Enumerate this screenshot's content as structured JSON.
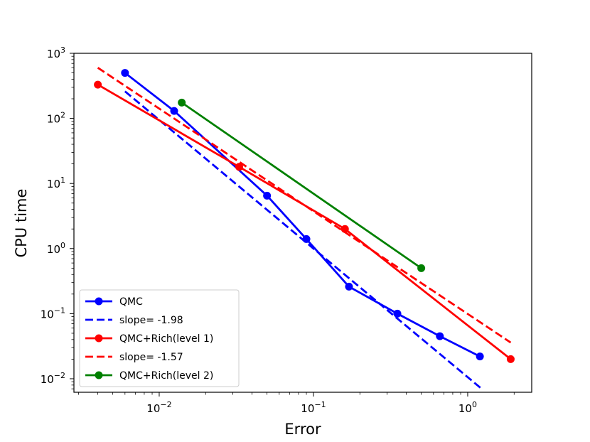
{
  "chart_data": {
    "type": "line",
    "xlabel": "Error",
    "ylabel": "CPU time",
    "xscale": "log",
    "yscale": "log",
    "xlim": [
      0.0028,
      2.6
    ],
    "ylim": [
      0.0062,
      1000
    ],
    "grid": false,
    "legend_position": "lower-left",
    "x_tick_labels": [
      {
        "value": 0.01,
        "base": "10",
        "exp": "−2"
      },
      {
        "value": 0.1,
        "base": "10",
        "exp": "−1"
      },
      {
        "value": 1,
        "base": "10",
        "exp": "0"
      }
    ],
    "y_tick_labels": [
      {
        "value": 0.01,
        "base": "10",
        "exp": "−2"
      },
      {
        "value": 0.1,
        "base": "10",
        "exp": "−1"
      },
      {
        "value": 1,
        "base": "10",
        "exp": "0"
      },
      {
        "value": 10,
        "base": "10",
        "exp": "1"
      },
      {
        "value": 100,
        "base": "10",
        "exp": "2"
      },
      {
        "value": 1000,
        "base": "10",
        "exp": "3"
      }
    ],
    "series": [
      {
        "name": "QMC",
        "color": "#0000ff",
        "style": "solid-marker",
        "x": [
          0.006,
          0.0125,
          0.05,
          0.09,
          0.17,
          0.35,
          0.66,
          1.2
        ],
        "y": [
          500,
          130,
          6.5,
          1.4,
          0.26,
          0.1,
          0.045,
          0.022
        ]
      },
      {
        "name": "slope= -1.98",
        "color": "#0000ff",
        "style": "dashed",
        "x": [
          0.006,
          1.25
        ],
        "y": [
          260,
          0.0068
        ]
      },
      {
        "name": "QMC+Rich(level 1)",
        "color": "#ff0000",
        "style": "solid-marker",
        "x": [
          0.004,
          0.033,
          0.16,
          1.9
        ],
        "y": [
          330,
          18,
          2.0,
          0.02
        ]
      },
      {
        "name": "slope= -1.57",
        "color": "#ff0000",
        "style": "dashed",
        "x": [
          0.004,
          1.9
        ],
        "y": [
          600,
          0.036
        ]
      },
      {
        "name": "QMC+Rich(level 2)",
        "color": "#008000",
        "style": "solid-marker",
        "x": [
          0.014,
          0.5
        ],
        "y": [
          175,
          0.5
        ]
      }
    ]
  }
}
